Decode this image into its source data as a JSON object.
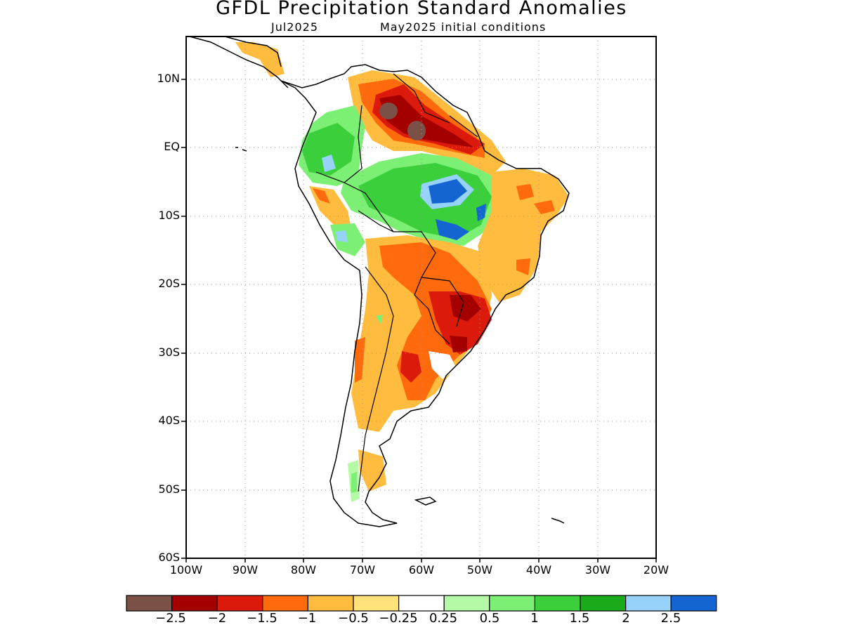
{
  "title": "GFDL Precipitation Standard Anomalies",
  "subtitle_left": "Jul2025",
  "subtitle_right": "May2025 initial conditions",
  "lat_labels": [
    "10N",
    "EQ",
    "10S",
    "20S",
    "30S",
    "40S",
    "50S",
    "60S"
  ],
  "lon_labels": [
    "100W",
    "90W",
    "80W",
    "70W",
    "60W",
    "50W",
    "40W",
    "30W",
    "20W"
  ],
  "colorbar": {
    "colors": [
      "#7b5047",
      "#a50000",
      "#dc1a0b",
      "#ff6a0c",
      "#ffbc3e",
      "#ffe27a",
      "#ffffff",
      "#b4f9a6",
      "#7cf075",
      "#3bcf3b",
      "#1aab1a",
      "#96d2fa",
      "#1464d2"
    ],
    "labels": [
      "−2.5",
      "−2",
      "−1.5",
      "−1",
      "−0.5",
      "−0.25",
      "0.25",
      "0.5",
      "1",
      "1.5",
      "2",
      "2.5"
    ]
  }
}
